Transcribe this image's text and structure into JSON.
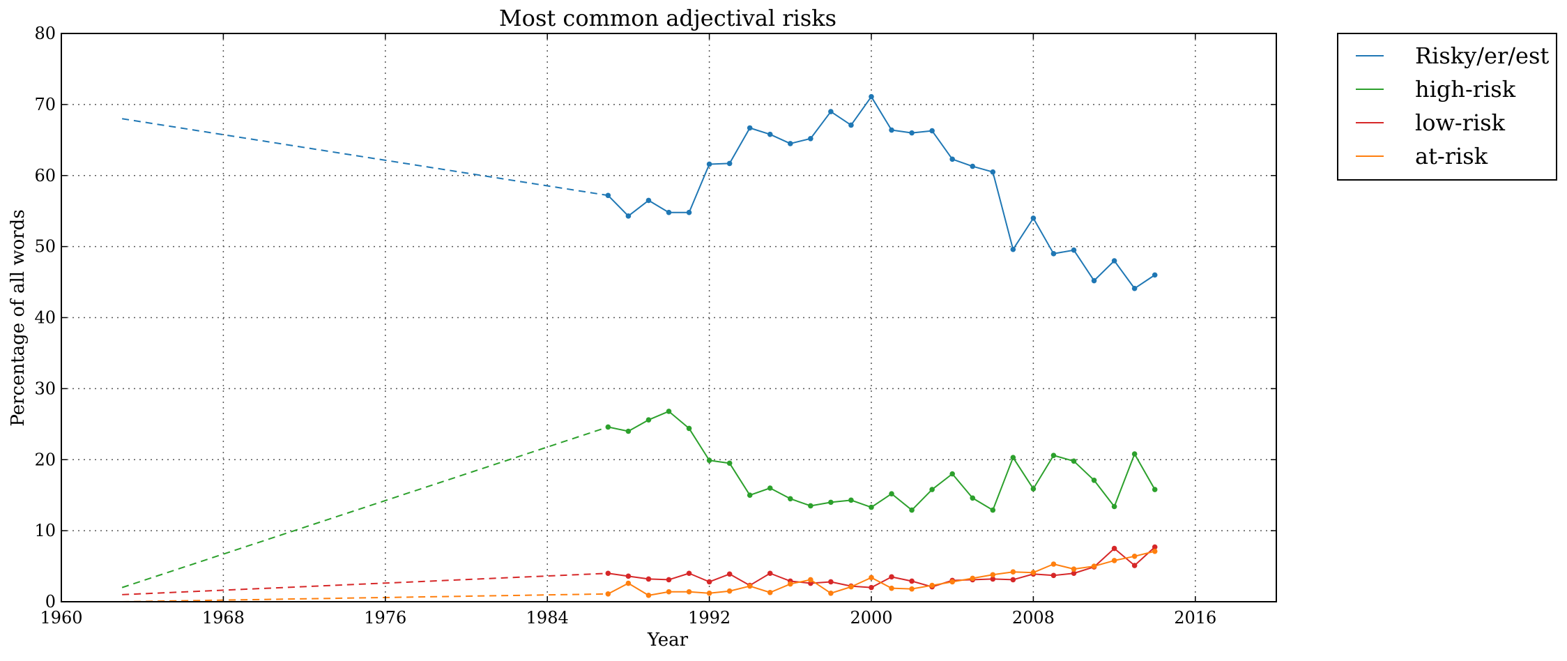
{
  "chart_data": {
    "type": "line",
    "title": "Most common adjectival risks",
    "xlabel": "Year",
    "ylabel": "Percentage of all words",
    "xlim": [
      1960,
      2020
    ],
    "ylim": [
      0,
      80
    ],
    "xticks": [
      1960,
      1968,
      1976,
      1984,
      1992,
      2000,
      2008,
      2016
    ],
    "yticks": [
      0,
      10,
      20,
      30,
      40,
      50,
      60,
      70,
      80
    ],
    "grid": true,
    "legend_position": "outside-top-right",
    "series": [
      {
        "name": "Risky/er/est",
        "color": "#1f77b4",
        "dashed_segment": [
          [
            1963,
            68.0
          ],
          [
            1987,
            57.2
          ]
        ],
        "points": [
          [
            1987,
            57.2
          ],
          [
            1988,
            54.3
          ],
          [
            1989,
            56.5
          ],
          [
            1990,
            54.8
          ],
          [
            1991,
            54.8
          ],
          [
            1992,
            61.6
          ],
          [
            1993,
            61.7
          ],
          [
            1994,
            66.7
          ],
          [
            1995,
            65.8
          ],
          [
            1996,
            64.5
          ],
          [
            1997,
            65.2
          ],
          [
            1998,
            69.0
          ],
          [
            1999,
            67.1
          ],
          [
            2000,
            71.1
          ],
          [
            2001,
            66.4
          ],
          [
            2002,
            66.0
          ],
          [
            2003,
            66.3
          ],
          [
            2004,
            62.3
          ],
          [
            2005,
            61.3
          ],
          [
            2006,
            60.5
          ],
          [
            2007,
            49.6
          ],
          [
            2008,
            54.0
          ],
          [
            2009,
            49.0
          ],
          [
            2010,
            49.5
          ],
          [
            2011,
            45.2
          ],
          [
            2012,
            48.0
          ],
          [
            2013,
            44.1
          ],
          [
            2014,
            46.0
          ]
        ]
      },
      {
        "name": "high-risk",
        "color": "#2ca02c",
        "dashed_segment": [
          [
            1963,
            2.0
          ],
          [
            1987,
            24.6
          ]
        ],
        "points": [
          [
            1987,
            24.6
          ],
          [
            1988,
            24.0
          ],
          [
            1989,
            25.6
          ],
          [
            1990,
            26.8
          ],
          [
            1991,
            24.4
          ],
          [
            1992,
            19.9
          ],
          [
            1993,
            19.5
          ],
          [
            1994,
            15.0
          ],
          [
            1995,
            16.0
          ],
          [
            1996,
            14.5
          ],
          [
            1997,
            13.5
          ],
          [
            1998,
            14.0
          ],
          [
            1999,
            14.3
          ],
          [
            2000,
            13.3
          ],
          [
            2001,
            15.2
          ],
          [
            2002,
            12.9
          ],
          [
            2003,
            15.8
          ],
          [
            2004,
            18.0
          ],
          [
            2005,
            14.6
          ],
          [
            2006,
            12.9
          ],
          [
            2007,
            20.3
          ],
          [
            2008,
            15.9
          ],
          [
            2009,
            20.6
          ],
          [
            2010,
            19.8
          ],
          [
            2011,
            17.1
          ],
          [
            2012,
            13.4
          ],
          [
            2013,
            20.8
          ],
          [
            2014,
            15.8
          ]
        ]
      },
      {
        "name": "low-risk",
        "color": "#d62728",
        "dashed_segment": [
          [
            1963,
            1.0
          ],
          [
            1987,
            4.0
          ]
        ],
        "points": [
          [
            1987,
            4.0
          ],
          [
            1988,
            3.6
          ],
          [
            1989,
            3.2
          ],
          [
            1990,
            3.1
          ],
          [
            1991,
            4.0
          ],
          [
            1992,
            2.8
          ],
          [
            1993,
            3.9
          ],
          [
            1994,
            2.3
          ],
          [
            1995,
            4.0
          ],
          [
            1996,
            2.9
          ],
          [
            1997,
            2.6
          ],
          [
            1998,
            2.8
          ],
          [
            1999,
            2.2
          ],
          [
            2000,
            2.0
          ],
          [
            2001,
            3.5
          ],
          [
            2002,
            2.9
          ],
          [
            2003,
            2.1
          ],
          [
            2004,
            3.0
          ],
          [
            2005,
            3.1
          ],
          [
            2006,
            3.2
          ],
          [
            2007,
            3.1
          ],
          [
            2008,
            3.9
          ],
          [
            2009,
            3.7
          ],
          [
            2010,
            4.0
          ],
          [
            2011,
            4.9
          ],
          [
            2012,
            7.5
          ],
          [
            2013,
            5.1
          ],
          [
            2014,
            7.7
          ]
        ]
      },
      {
        "name": "at-risk",
        "color": "#ff7f0e",
        "dashed_segment": [
          [
            1963,
            0.0
          ],
          [
            1987,
            1.1
          ]
        ],
        "points": [
          [
            1987,
            1.1
          ],
          [
            1988,
            2.6
          ],
          [
            1989,
            0.9
          ],
          [
            1990,
            1.4
          ],
          [
            1991,
            1.4
          ],
          [
            1992,
            1.2
          ],
          [
            1993,
            1.5
          ],
          [
            1994,
            2.2
          ],
          [
            1995,
            1.3
          ],
          [
            1996,
            2.5
          ],
          [
            1997,
            3.1
          ],
          [
            1998,
            1.2
          ],
          [
            1999,
            2.1
          ],
          [
            2000,
            3.4
          ],
          [
            2001,
            1.9
          ],
          [
            2002,
            1.8
          ],
          [
            2003,
            2.3
          ],
          [
            2004,
            2.8
          ],
          [
            2005,
            3.3
          ],
          [
            2006,
            3.8
          ],
          [
            2007,
            4.2
          ],
          [
            2008,
            4.1
          ],
          [
            2009,
            5.3
          ],
          [
            2010,
            4.6
          ],
          [
            2011,
            5.0
          ],
          [
            2012,
            5.8
          ],
          [
            2013,
            6.4
          ],
          [
            2014,
            7.1
          ]
        ]
      }
    ]
  }
}
